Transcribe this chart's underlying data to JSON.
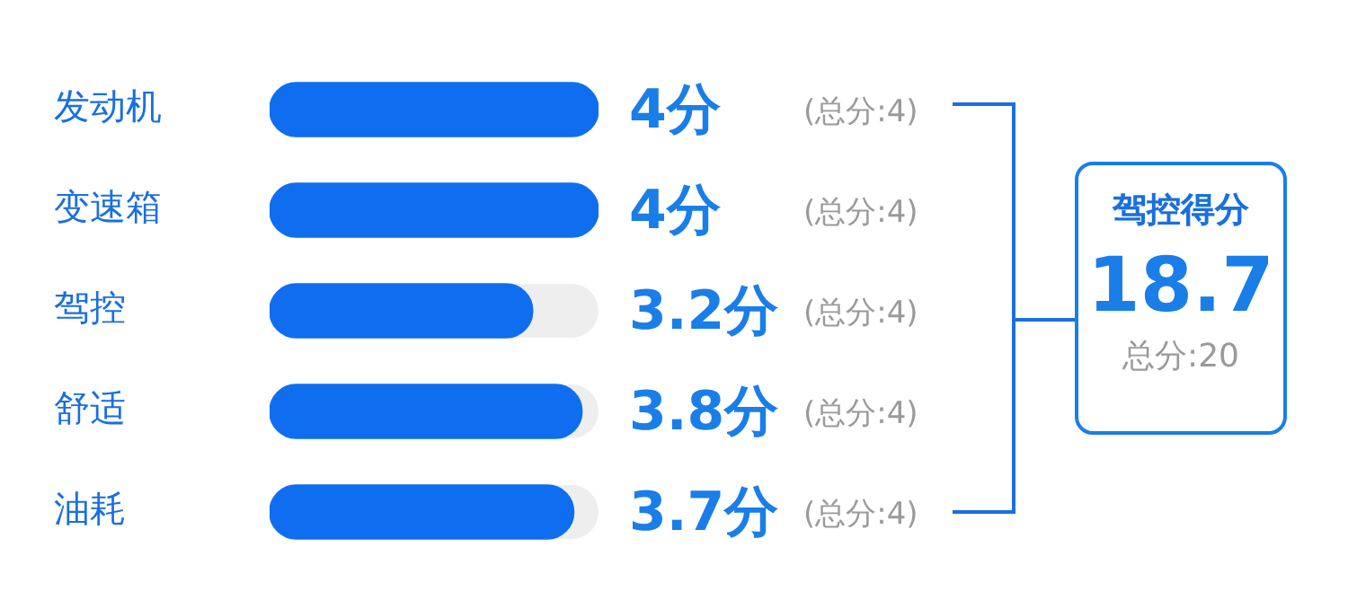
{
  "chart_data": {
    "type": "bar",
    "orientation": "horizontal",
    "categories": [
      "发动机",
      "变速箱",
      "驾控",
      "舒适",
      "油耗"
    ],
    "values": [
      4,
      4,
      3.2,
      3.8,
      3.7
    ],
    "value_labels": [
      "4分",
      "4分",
      "3.2分",
      "3.8分",
      "3.7分"
    ],
    "color": "#0f6ef0",
    "xlim": [
      0,
      4
    ],
    "tick_labels": "y",
    "grid": false,
    "legend": false,
    "annotations": [
      "(总分:4)",
      "(总分:4)",
      "(总分:4)",
      "(总分:4)",
      "(总分:4)",
      "驾控得分",
      "18.7",
      "总分:20"
    ]
  }
}
